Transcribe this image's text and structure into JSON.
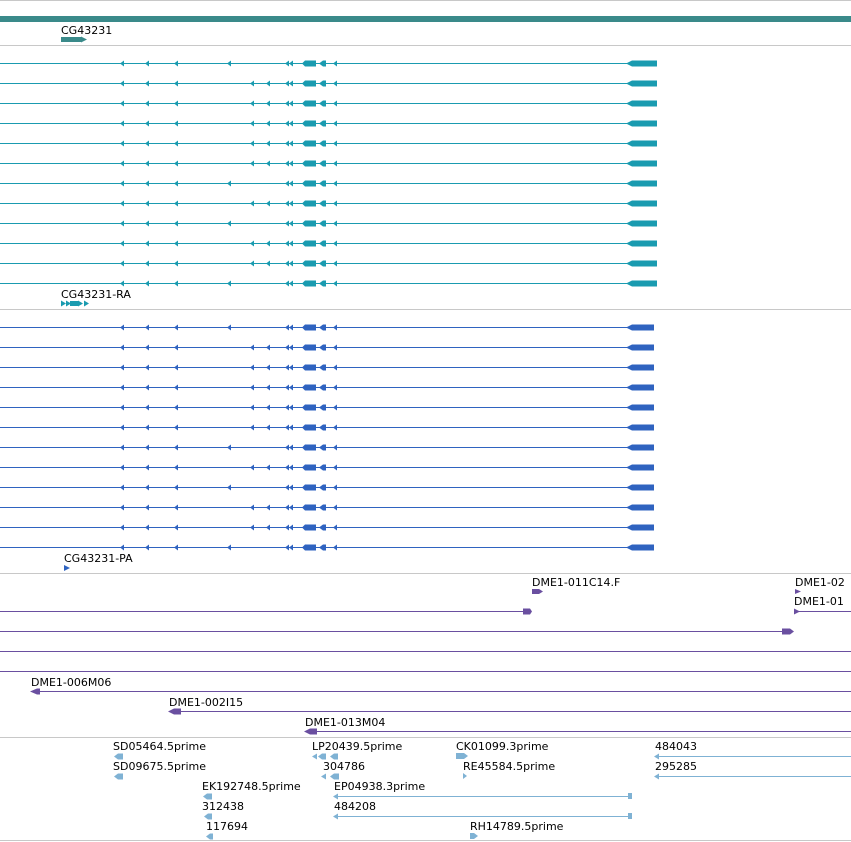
{
  "colors": {
    "gene": "#3a8a8a",
    "transcript": "#1a9bb0",
    "protein": "#2f63c0",
    "clone": "#6a4fa0",
    "est": "#7fb2d4",
    "divider": "#c8c8c8"
  },
  "gene_track": {
    "label": "CG43231"
  },
  "transcript_track": {
    "label": "CG43231-RA",
    "row_count": 12
  },
  "protein_track": {
    "label": "CG43231-PA",
    "row_count": 12
  },
  "clone_track": {
    "labels": [
      "DME1-011C14.F",
      "DME1-02",
      "DME1-01",
      "DME1-006M06",
      "DME1-002I15",
      "DME1-013M04"
    ]
  },
  "est_track": {
    "labels": [
      "SD05464.5prime",
      "LP20439.5prime",
      "CK01099.3prime",
      "484043",
      "SD09675.5prime",
      "304786",
      "RE45584.5prime",
      "295285",
      "EK192748.5prime",
      "EP04938.3prime",
      "312438",
      "484208",
      "117694",
      "RH14789.5prime"
    ]
  }
}
